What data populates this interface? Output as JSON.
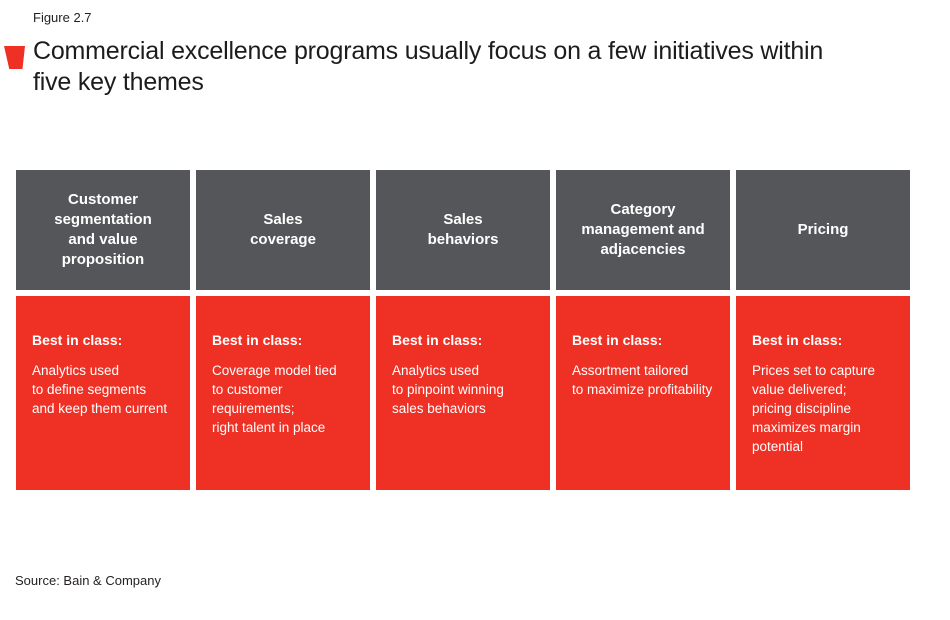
{
  "colors": {
    "accent-red": "#ee3124",
    "header-gray": "#55565a",
    "text-dark": "#231f20"
  },
  "figure": {
    "label": "Figure 2.7",
    "title_lines": [
      "Commercial excellence programs usually focus on a few initiatives within",
      "five key themes"
    ],
    "source": "Source: Bain & Company"
  },
  "columns": [
    {
      "header_lines": [
        "Customer",
        "segmentation",
        "and value",
        "proposition"
      ],
      "best_label": "Best in class:",
      "body_lines": [
        "Analytics used",
        "to define segments",
        "and keep them current"
      ]
    },
    {
      "header_lines": [
        "Sales",
        "coverage"
      ],
      "best_label": "Best in class:",
      "body_lines": [
        "Coverage model tied",
        "to customer requirements;",
        "right talent in place"
      ]
    },
    {
      "header_lines": [
        "Sales",
        "behaviors"
      ],
      "best_label": "Best in class:",
      "body_lines": [
        "Analytics used",
        "to pinpoint winning",
        "sales behaviors"
      ]
    },
    {
      "header_lines": [
        "Category",
        "management and",
        "adjacencies"
      ],
      "best_label": "Best in class:",
      "body_lines": [
        "Assortment tailored",
        "to maximize profitability"
      ]
    },
    {
      "header_lines": [
        "Pricing"
      ],
      "best_label": "Best in class:",
      "body_lines": [
        "Prices set to capture",
        "value delivered;",
        "pricing discipline",
        "maximizes margin",
        "potential"
      ]
    }
  ]
}
